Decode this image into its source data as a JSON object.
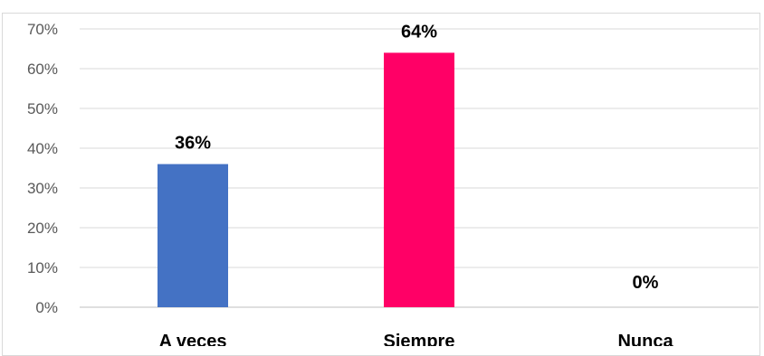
{
  "chart_data": {
    "type": "bar",
    "title": "",
    "xlabel": "",
    "ylabel": "",
    "categories": [
      "A veces",
      "Siempre",
      "Nunca"
    ],
    "values": [
      36,
      64,
      0
    ],
    "data_labels": [
      "36%",
      "64%",
      "0%"
    ],
    "bar_colors": [
      "#4472c4",
      "#ff0066",
      "#ff0066"
    ],
    "ylim": [
      0,
      70
    ],
    "yticks": [
      0,
      10,
      20,
      30,
      40,
      50,
      60,
      70
    ],
    "ytick_labels": [
      "0%",
      "10%",
      "20%",
      "30%",
      "40%",
      "50%",
      "60%",
      "70%"
    ],
    "grid": true,
    "legend": "none",
    "gridline_color": "#d9d9d9",
    "axis_color": "#bfbfbf"
  }
}
